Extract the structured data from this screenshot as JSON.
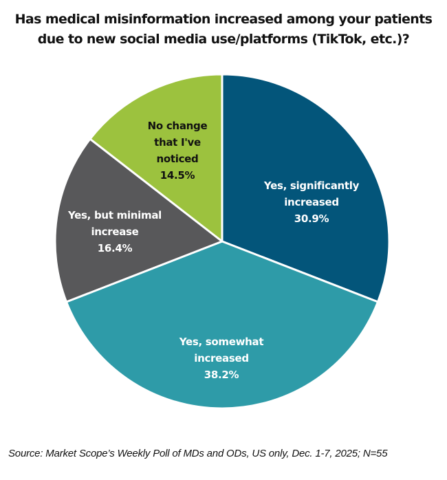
{
  "title": {
    "line1": "Has medical misinformation increased among your patients",
    "line2": "due to new social media use/platforms (TikTok, etc.)?"
  },
  "source": "Source: Market Scope’s Weekly Poll of MDs and ODs, US only, Dec. 1-7, 2025; N=55",
  "chart_data": {
    "type": "pie",
    "title": "Has medical misinformation increased among your patients due to new social media use/platforms (TikTok, etc.)?",
    "start_angle_deg": 0,
    "direction": "clockwise",
    "categories": [
      "Yes, significantly increased",
      "Yes, somewhat increased",
      "Yes, but minimal increase",
      "No change that I've noticed"
    ],
    "values": [
      30.9,
      38.2,
      16.4,
      14.5
    ],
    "unit": "%",
    "colors": [
      "#03557a",
      "#2e9ba8",
      "#58585a",
      "#9cc23e"
    ],
    "label_colors": [
      "#ffffff",
      "#ffffff",
      "#ffffff",
      "#111111"
    ],
    "legend": "none (data labels inside slices)",
    "note": "N=55"
  },
  "labels": [
    {
      "lines": [
        "Yes, significantly",
        "increased",
        "30.9%"
      ]
    },
    {
      "lines": [
        "Yes, somewhat",
        "increased",
        "38.2%"
      ]
    },
    {
      "lines": [
        "Yes, but minimal",
        "increase",
        "16.4%"
      ]
    },
    {
      "lines": [
        "No change",
        "that I've",
        "noticed",
        "14.5%"
      ]
    }
  ]
}
